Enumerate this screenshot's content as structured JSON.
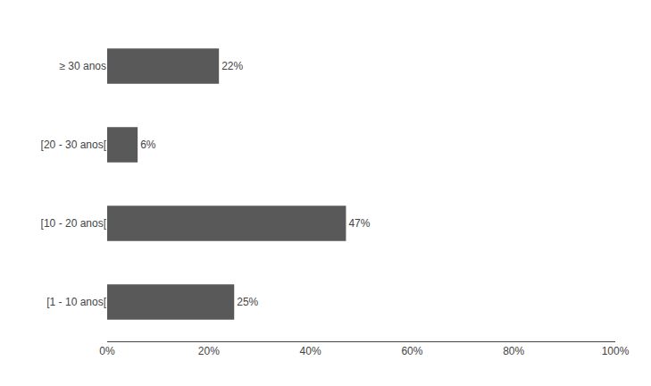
{
  "chart_data": {
    "type": "bar",
    "orientation": "horizontal",
    "categories": [
      "≥ 30 anos",
      "[20 - 30 anos[",
      "[10 - 20 anos[",
      "[1 - 10 anos["
    ],
    "values": [
      22,
      6,
      47,
      25
    ],
    "value_labels": [
      "22%",
      "6%",
      "47%",
      "25%"
    ],
    "data_labels": true,
    "color": "#595959",
    "xlim": [
      0,
      100
    ],
    "xticks": [
      {
        "value": 0,
        "label": "0%"
      },
      {
        "value": 20,
        "label": "20%"
      },
      {
        "value": 40,
        "label": "40%"
      },
      {
        "value": 60,
        "label": "60%"
      },
      {
        "value": 80,
        "label": "80%"
      },
      {
        "value": 100,
        "label": "100%"
      }
    ],
    "grid": false
  }
}
